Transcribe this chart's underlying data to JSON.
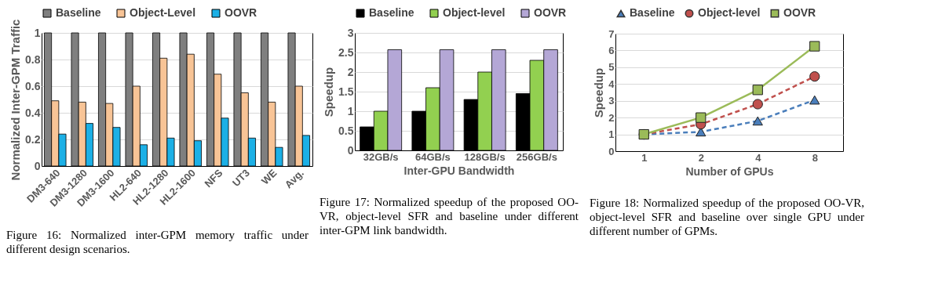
{
  "chart_data": [
    {
      "type": "bar",
      "ylabel": "Normalized Inter-GPM Traffic",
      "categories": [
        "DM3-640",
        "DM3-1280",
        "DM3-1600",
        "HL2-640",
        "HL2-1280",
        "HL2-1600",
        "NFS",
        "UT3",
        "WE",
        "Avg."
      ],
      "series": [
        {
          "name": "Baseline",
          "color": "#7f7f7f",
          "values": [
            1,
            1,
            1,
            1,
            1,
            1,
            1,
            1,
            1,
            1
          ]
        },
        {
          "name": "Object-Level",
          "color": "#f8c496",
          "values": [
            0.49,
            0.48,
            0.47,
            0.6,
            0.81,
            0.84,
            0.69,
            0.55,
            0.48,
            0.6
          ]
        },
        {
          "name": "OOVR",
          "color": "#1cb0e6",
          "values": [
            0.24,
            0.32,
            0.29,
            0.16,
            0.21,
            0.19,
            0.36,
            0.21,
            0.14,
            0.23
          ]
        }
      ],
      "ylim": [
        0,
        1
      ],
      "yticks": [
        0,
        0.2,
        0.4,
        0.6,
        0.8,
        1
      ],
      "grid": "y",
      "legend": "top",
      "annotations": [
        "Figure 16: Normalized inter-GPM memory traffic under different design scenarios."
      ]
    },
    {
      "type": "bar",
      "xlabel": "Inter-GPU Bandwidth",
      "ylabel": "Speedup",
      "categories": [
        "32GB/s",
        "64GB/s",
        "128GB/s",
        "256GB/s"
      ],
      "series": [
        {
          "name": "Baseline",
          "color": "#000000",
          "values": [
            0.6,
            1.0,
            1.3,
            1.45
          ]
        },
        {
          "name": "Object-level",
          "color": "#92d050",
          "values": [
            1.0,
            1.6,
            2.0,
            2.3
          ]
        },
        {
          "name": "OOVR",
          "color": "#b4a7d6",
          "values": [
            2.57,
            2.57,
            2.57,
            2.57
          ]
        }
      ],
      "ylim": [
        0,
        3
      ],
      "yticks": [
        0,
        0.5,
        1,
        1.5,
        2,
        2.5,
        3
      ],
      "grid": "y",
      "legend": "top",
      "annotations": [
        "Figure 17: Normalized speedup of the proposed OO-VR, object-level SFR and baseline under different inter-GPM link bandwidth."
      ]
    },
    {
      "type": "line",
      "xlabel": "Number of GPUs",
      "ylabel": "Speedup",
      "categories": [
        "1",
        "2",
        "4",
        "8"
      ],
      "series": [
        {
          "name": "Baseline",
          "color": "#4a7ebb",
          "marker": "triangle",
          "line_style": "dashed",
          "values": [
            1,
            1.15,
            1.8,
            3.05
          ]
        },
        {
          "name": "Object-level",
          "color": "#c0504d",
          "marker": "circle",
          "line_style": "dashed",
          "values": [
            1,
            1.6,
            2.8,
            4.45
          ]
        },
        {
          "name": "OOVR",
          "color": "#9bbb59",
          "marker": "square",
          "line_style": "solid",
          "values": [
            1,
            2,
            3.65,
            6.25
          ]
        }
      ],
      "ylim": [
        0,
        7
      ],
      "yticks": [
        0,
        1,
        2,
        3,
        4,
        5,
        6,
        7
      ],
      "grid": "y",
      "legend": "top",
      "annotations": [
        "Figure 18: Normalized speedup of the proposed OO-VR, object-level SFR and baseline over single GPU under different number of GPMs."
      ]
    }
  ]
}
